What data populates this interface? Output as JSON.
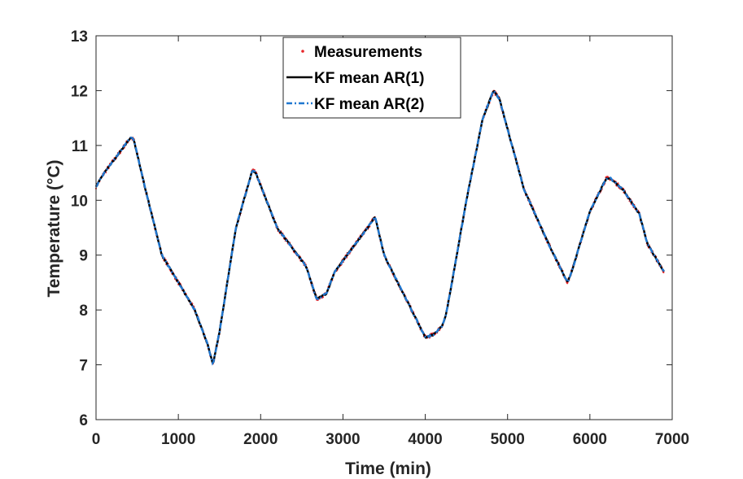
{
  "chart_data": {
    "type": "line",
    "title": "",
    "xlabel": "Time (min)",
    "ylabel": "Temperature (°C)",
    "xlim": [
      0,
      7000
    ],
    "ylim": [
      6,
      13
    ],
    "xticks": [
      0,
      1000,
      2000,
      3000,
      4000,
      5000,
      6000,
      7000
    ],
    "yticks": [
      6,
      7,
      8,
      9,
      10,
      11,
      12,
      13
    ],
    "grid": false,
    "legend_position": "top-center",
    "colors": {
      "measurements": "#e8262a",
      "ar1": "#000000",
      "ar2": "#1f77d0",
      "axis": "#262626"
    },
    "series": [
      {
        "name": "Measurements",
        "style": "dots"
      },
      {
        "name": "KF mean AR(1)",
        "style": "solid"
      },
      {
        "name": "KF mean AR(2)",
        "style": "dash-dot"
      }
    ],
    "trend": {
      "x": [
        0,
        100,
        200,
        300,
        420,
        460,
        600,
        800,
        1000,
        1200,
        1350,
        1420,
        1500,
        1700,
        1900,
        1940,
        2200,
        2400,
        2550,
        2680,
        2800,
        2900,
        3100,
        3300,
        3390,
        3500,
        3700,
        3900,
        4000,
        4100,
        4200,
        4250,
        4300,
        4500,
        4700,
        4830,
        4900,
        5000,
        5200,
        5500,
        5730,
        5800,
        6000,
        6200,
        6250,
        6400,
        6600,
        6700,
        6900
      ],
      "y": [
        10.25,
        10.5,
        10.7,
        10.9,
        11.15,
        11.1,
        10.2,
        9.0,
        8.5,
        8.0,
        7.4,
        7.0,
        7.6,
        9.5,
        10.55,
        10.5,
        9.5,
        9.1,
        8.8,
        8.2,
        8.3,
        8.7,
        9.1,
        9.5,
        9.7,
        9.0,
        8.4,
        7.8,
        7.5,
        7.55,
        7.7,
        7.9,
        8.3,
        10.0,
        11.5,
        12.0,
        11.85,
        11.3,
        10.2,
        9.2,
        8.5,
        8.8,
        9.8,
        10.4,
        10.4,
        10.2,
        9.75,
        9.2,
        8.7
      ]
    }
  },
  "legend": {
    "items": [
      "Measurements",
      "KF mean AR(1)",
      "KF mean AR(2)"
    ]
  }
}
